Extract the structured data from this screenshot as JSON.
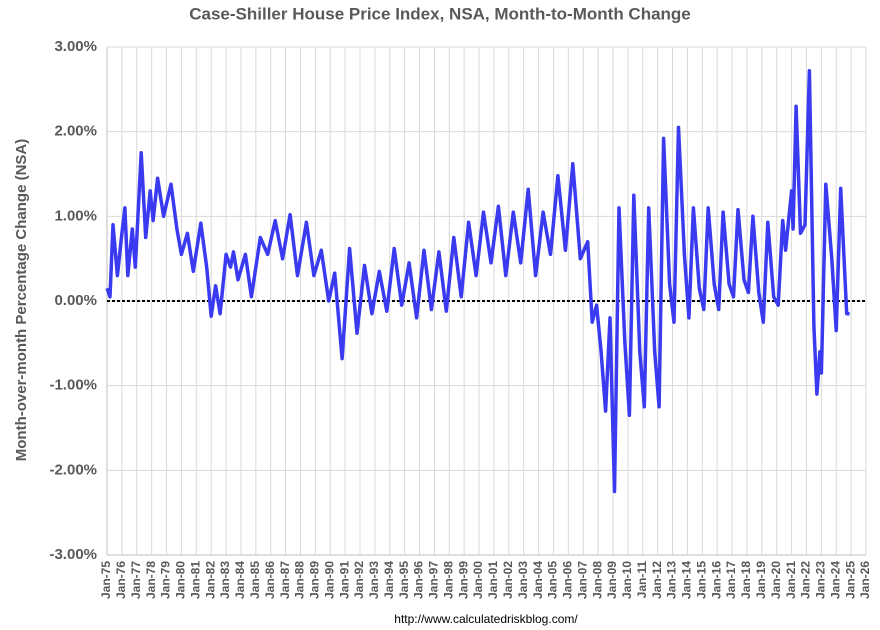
{
  "chart_data": {
    "type": "line",
    "title": "Case-Shiller House Price Index, NSA, Month-to-Month Change",
    "y_label": "Month-over-month Percentage Change (NSA)",
    "source": "http://www.calculatedriskblog.com/",
    "color": "#3a3af0",
    "grid": true,
    "xlim": [
      1975,
      2026
    ],
    "ylim": [
      -3,
      3
    ],
    "yticks": [
      {
        "value": -3,
        "label": "-3.00%"
      },
      {
        "value": -2,
        "label": "-2.00%"
      },
      {
        "value": -1,
        "label": "-1.00%"
      },
      {
        "value": 0,
        "label": "0.00%"
      },
      {
        "value": 1,
        "label": "1.00%"
      },
      {
        "value": 2,
        "label": "2.00%"
      },
      {
        "value": 3,
        "label": "3.00%"
      }
    ],
    "xticks": [
      {
        "value": 1975,
        "label": "Jan-75"
      },
      {
        "value": 1976,
        "label": "Jan-76"
      },
      {
        "value": 1977,
        "label": "Jan-77"
      },
      {
        "value": 1978,
        "label": "Jan-78"
      },
      {
        "value": 1979,
        "label": "Jan-79"
      },
      {
        "value": 1980,
        "label": "Jan-80"
      },
      {
        "value": 1981,
        "label": "Jan-81"
      },
      {
        "value": 1982,
        "label": "Jan-82"
      },
      {
        "value": 1983,
        "label": "Jan-83"
      },
      {
        "value": 1984,
        "label": "Jan-84"
      },
      {
        "value": 1985,
        "label": "Jan-85"
      },
      {
        "value": 1986,
        "label": "Jan-86"
      },
      {
        "value": 1987,
        "label": "Jan-87"
      },
      {
        "value": 1988,
        "label": "Jan-88"
      },
      {
        "value": 1989,
        "label": "Jan-89"
      },
      {
        "value": 1990,
        "label": "Jan-90"
      },
      {
        "value": 1991,
        "label": "Jan-91"
      },
      {
        "value": 1992,
        "label": "Jan-92"
      },
      {
        "value": 1993,
        "label": "Jan-93"
      },
      {
        "value": 1994,
        "label": "Jan-94"
      },
      {
        "value": 1995,
        "label": "Jan-95"
      },
      {
        "value": 1996,
        "label": "Jan-96"
      },
      {
        "value": 1997,
        "label": "Jan-97"
      },
      {
        "value": 1998,
        "label": "Jan-98"
      },
      {
        "value": 1999,
        "label": "Jan-99"
      },
      {
        "value": 2000,
        "label": "Jan-00"
      },
      {
        "value": 2001,
        "label": "Jan-01"
      },
      {
        "value": 2002,
        "label": "Jan-02"
      },
      {
        "value": 2003,
        "label": "Jan-03"
      },
      {
        "value": 2004,
        "label": "Jan-04"
      },
      {
        "value": 2005,
        "label": "Jan-05"
      },
      {
        "value": 2006,
        "label": "Jan-06"
      },
      {
        "value": 2007,
        "label": "Jan-07"
      },
      {
        "value": 2008,
        "label": "Jan-08"
      },
      {
        "value": 2009,
        "label": "Jan-09"
      },
      {
        "value": 2010,
        "label": "Jan-10"
      },
      {
        "value": 2011,
        "label": "Jan-11"
      },
      {
        "value": 2012,
        "label": "Jan-12"
      },
      {
        "value": 2013,
        "label": "Jan-13"
      },
      {
        "value": 2014,
        "label": "Jan-14"
      },
      {
        "value": 2015,
        "label": "Jan-15"
      },
      {
        "value": 2016,
        "label": "Jan-16"
      },
      {
        "value": 2017,
        "label": "Jan-17"
      },
      {
        "value": 2018,
        "label": "Jan-18"
      },
      {
        "value": 2019,
        "label": "Jan-19"
      },
      {
        "value": 2020,
        "label": "Jan-20"
      },
      {
        "value": 2021,
        "label": "Jan-21"
      },
      {
        "value": 2022,
        "label": "Jan-22"
      },
      {
        "value": 2023,
        "label": "Jan-23"
      },
      {
        "value": 2024,
        "label": "Jan-24"
      },
      {
        "value": 2025,
        "label": "Jan-25"
      },
      {
        "value": 2026,
        "label": "Jan-26"
      }
    ],
    "x": [
      1975.0,
      1975.2,
      1975.4,
      1975.7,
      1976.0,
      1976.2,
      1976.4,
      1976.7,
      1976.9,
      1977.3,
      1977.6,
      1977.9,
      1978.1,
      1978.4,
      1978.8,
      1979.3,
      1979.7,
      1980.0,
      1980.4,
      1980.8,
      1981.3,
      1981.7,
      1982.0,
      1982.3,
      1982.6,
      1983.0,
      1983.3,
      1983.5,
      1983.8,
      1984.3,
      1984.7,
      1985.3,
      1985.8,
      1986.3,
      1986.8,
      1987.3,
      1987.8,
      1988.4,
      1988.9,
      1989.4,
      1989.9,
      1990.3,
      1990.8,
      1991.3,
      1991.8,
      1992.3,
      1992.8,
      1993.3,
      1993.8,
      1994.3,
      1994.8,
      1995.3,
      1995.8,
      1996.3,
      1996.8,
      1997.3,
      1997.8,
      1998.3,
      1998.8,
      1999.3,
      1999.8,
      2000.3,
      2000.8,
      2001.3,
      2001.8,
      2002.3,
      2002.8,
      2003.3,
      2003.8,
      2004.3,
      2004.8,
      2005.3,
      2005.8,
      2006.3,
      2006.8,
      2007.3,
      2007.6,
      2007.9,
      2008.2,
      2008.5,
      2008.8,
      2009.1,
      2009.4,
      2009.8,
      2010.1,
      2010.4,
      2010.8,
      2011.1,
      2011.4,
      2011.8,
      2012.1,
      2012.4,
      2012.8,
      2013.1,
      2013.4,
      2013.8,
      2014.1,
      2014.4,
      2014.8,
      2015.1,
      2015.4,
      2015.8,
      2016.1,
      2016.4,
      2016.8,
      2017.1,
      2017.4,
      2017.8,
      2018.1,
      2018.4,
      2018.8,
      2019.1,
      2019.4,
      2019.8,
      2020.1,
      2020.4,
      2020.6,
      2021.0,
      2021.1,
      2021.3,
      2021.6,
      2021.9,
      2022.2,
      2022.5,
      2022.7,
      2022.9,
      2023.0,
      2023.3,
      2023.7,
      2024.0,
      2024.3,
      2024.7,
      2024.9
    ],
    "values": [
      0.15,
      0.05,
      0.9,
      0.3,
      0.8,
      1.1,
      0.3,
      0.85,
      0.4,
      1.75,
      0.75,
      1.3,
      0.95,
      1.45,
      1.0,
      1.38,
      0.85,
      0.55,
      0.8,
      0.35,
      0.92,
      0.4,
      -0.18,
      0.18,
      -0.15,
      0.55,
      0.4,
      0.58,
      0.25,
      0.55,
      0.05,
      0.75,
      0.55,
      0.95,
      0.5,
      1.02,
      0.3,
      0.93,
      0.3,
      0.6,
      0.0,
      0.33,
      -0.68,
      0.62,
      -0.38,
      0.42,
      -0.15,
      0.35,
      -0.12,
      0.62,
      -0.05,
      0.45,
      -0.2,
      0.6,
      -0.1,
      0.58,
      -0.12,
      0.75,
      0.05,
      0.93,
      0.3,
      1.05,
      0.45,
      1.12,
      0.3,
      1.05,
      0.45,
      1.32,
      0.3,
      1.05,
      0.55,
      1.48,
      0.6,
      1.62,
      0.5,
      0.7,
      -0.25,
      -0.05,
      -0.6,
      -1.3,
      -0.2,
      -2.25,
      1.1,
      -0.5,
      -1.35,
      1.25,
      -0.6,
      -1.25,
      1.1,
      -0.6,
      -1.25,
      1.92,
      0.2,
      -0.25,
      2.05,
      0.55,
      -0.2,
      1.1,
      0.15,
      -0.1,
      1.1,
      0.2,
      -0.1,
      1.05,
      0.2,
      0.05,
      1.08,
      0.25,
      0.1,
      1.0,
      0.1,
      -0.25,
      0.93,
      0.05,
      -0.05,
      0.95,
      0.6,
      1.3,
      0.85,
      2.3,
      0.8,
      0.9,
      2.72,
      -0.3,
      -1.1,
      -0.6,
      -0.85,
      1.38,
      0.5,
      -0.35,
      1.33,
      -0.15,
      -0.15
    ]
  }
}
